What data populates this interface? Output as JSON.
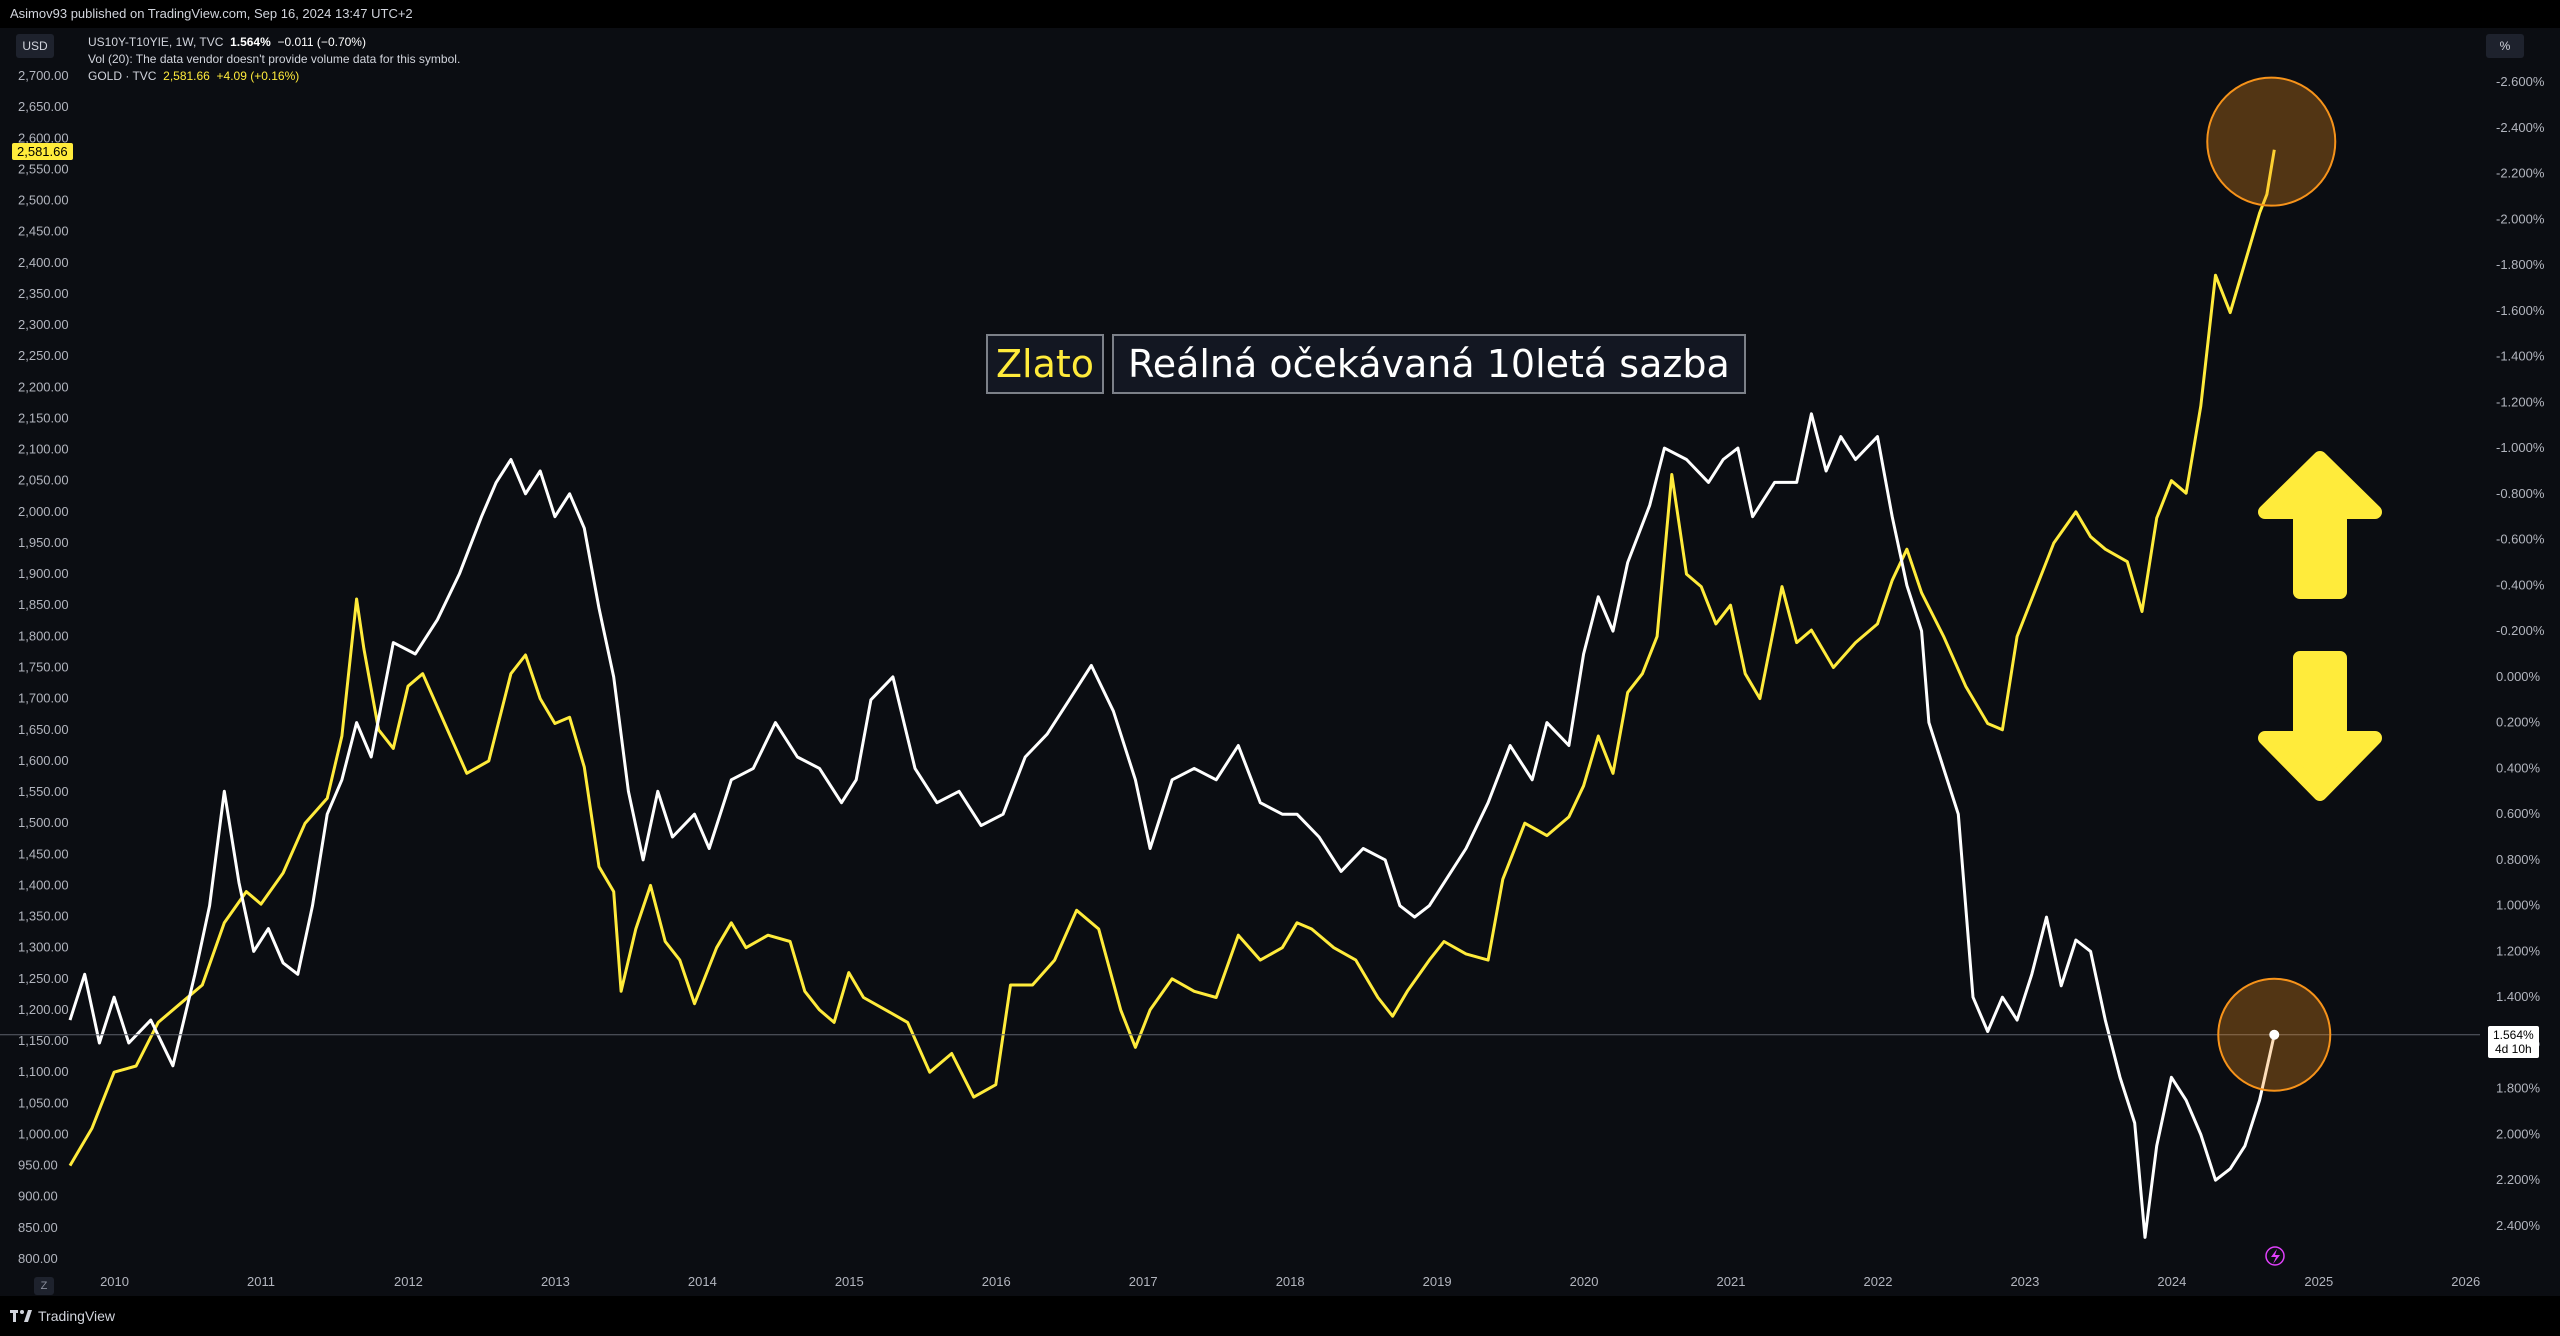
{
  "header": {
    "publisher": "Asimov93 published on TradingView.com, Sep 16, 2024 13:47 UTC+2"
  },
  "legend": {
    "series1_name": "US10Y-T10YIE, 1W, TVC",
    "series1_value": "1.564%",
    "series1_change": "−0.011 (−0.70%)",
    "volume_note": "Vol (20): The data vendor doesn't provide volume data for this symbol.",
    "series2_name": "GOLD · TVC",
    "series2_value": "2,581.66",
    "series2_change": "+4.09 (+0.16%)"
  },
  "badges": {
    "left_currency": "USD",
    "right_unit": "%",
    "gold_last": "2,581.66",
    "yield_last": "1.564%",
    "yield_countdown": "4d 10h",
    "scale_button": "Z"
  },
  "annotations": {
    "gold_title": "Zlato",
    "yield_title": "Reálná očekávaná 10letá sazba"
  },
  "footer": {
    "brand": "TradingView"
  },
  "colors": {
    "gold": "#ffeb3b",
    "yield": "#ffffff",
    "background": "#0b0d12",
    "highlight_circle": "#f7931a",
    "arrow": "#ffeb3b"
  },
  "chart_data": {
    "type": "line",
    "grid": false,
    "x_axis": {
      "labels": [
        "2010",
        "2011",
        "2012",
        "2013",
        "2014",
        "2015",
        "2016",
        "2017",
        "2018",
        "2019",
        "2020",
        "2021",
        "2022",
        "2023",
        "2024",
        "2025",
        "2026"
      ],
      "range": [
        2009.7,
        2026.1
      ]
    },
    "y_left": {
      "unit": "USD",
      "range": [
        800,
        2700
      ],
      "ticks": [
        "2,700.00",
        "2,650.00",
        "2,600.00",
        "2,550.00",
        "2,500.00",
        "2,450.00",
        "2,400.00",
        "2,350.00",
        "2,300.00",
        "2,250.00",
        "2,200.00",
        "2,150.00",
        "2,100.00",
        "2,050.00",
        "2,000.00",
        "1,950.00",
        "1,900.00",
        "1,850.00",
        "1,800.00",
        "1,750.00",
        "1,700.00",
        "1,650.00",
        "1,600.00",
        "1,550.00",
        "1,500.00",
        "1,450.00",
        "1,400.00",
        "1,350.00",
        "1,300.00",
        "1,250.00",
        "1,200.00",
        "1,150.00",
        "1,100.00",
        "1,050.00",
        "1,000.00",
        "950.00",
        "900.00",
        "850.00",
        "800.00"
      ]
    },
    "y_right": {
      "unit": "%",
      "inverted": true,
      "range": [
        -2.6,
        2.4
      ],
      "ticks": [
        "-2.600%",
        "-2.400%",
        "-2.200%",
        "-2.000%",
        "-1.800%",
        "-1.600%",
        "-1.400%",
        "-1.200%",
        "-1.000%",
        "-0.800%",
        "-0.600%",
        "-0.400%",
        "-0.200%",
        "0.000%",
        "0.200%",
        "0.400%",
        "0.600%",
        "0.800%",
        "1.000%",
        "1.200%",
        "1.400%",
        "1.600%",
        "1.800%",
        "2.000%",
        "2.200%",
        "2.400%"
      ]
    },
    "series": [
      {
        "name": "GOLD · TVC",
        "axis": "left",
        "color": "#ffeb3b",
        "points": [
          [
            2009.7,
            950
          ],
          [
            2009.85,
            1010
          ],
          [
            2010.0,
            1100
          ],
          [
            2010.15,
            1110
          ],
          [
            2010.3,
            1180
          ],
          [
            2010.45,
            1210
          ],
          [
            2010.6,
            1240
          ],
          [
            2010.75,
            1340
          ],
          [
            2010.9,
            1390
          ],
          [
            2011.0,
            1370
          ],
          [
            2011.15,
            1420
          ],
          [
            2011.3,
            1500
          ],
          [
            2011.45,
            1540
          ],
          [
            2011.55,
            1640
          ],
          [
            2011.65,
            1860
          ],
          [
            2011.7,
            1780
          ],
          [
            2011.8,
            1650
          ],
          [
            2011.9,
            1620
          ],
          [
            2012.0,
            1720
          ],
          [
            2012.1,
            1740
          ],
          [
            2012.25,
            1660
          ],
          [
            2012.4,
            1580
          ],
          [
            2012.55,
            1600
          ],
          [
            2012.7,
            1740
          ],
          [
            2012.8,
            1770
          ],
          [
            2012.9,
            1700
          ],
          [
            2013.0,
            1660
          ],
          [
            2013.1,
            1670
          ],
          [
            2013.2,
            1590
          ],
          [
            2013.3,
            1430
          ],
          [
            2013.4,
            1390
          ],
          [
            2013.45,
            1230
          ],
          [
            2013.55,
            1330
          ],
          [
            2013.65,
            1400
          ],
          [
            2013.75,
            1310
          ],
          [
            2013.85,
            1280
          ],
          [
            2013.95,
            1210
          ],
          [
            2014.0,
            1240
          ],
          [
            2014.1,
            1300
          ],
          [
            2014.2,
            1340
          ],
          [
            2014.3,
            1300
          ],
          [
            2014.45,
            1320
          ],
          [
            2014.6,
            1310
          ],
          [
            2014.7,
            1230
          ],
          [
            2014.8,
            1200
          ],
          [
            2014.9,
            1180
          ],
          [
            2015.0,
            1260
          ],
          [
            2015.1,
            1220
          ],
          [
            2015.25,
            1200
          ],
          [
            2015.4,
            1180
          ],
          [
            2015.55,
            1100
          ],
          [
            2015.7,
            1130
          ],
          [
            2015.85,
            1060
          ],
          [
            2016.0,
            1080
          ],
          [
            2016.1,
            1240
          ],
          [
            2016.25,
            1240
          ],
          [
            2016.4,
            1280
          ],
          [
            2016.55,
            1360
          ],
          [
            2016.7,
            1330
          ],
          [
            2016.85,
            1200
          ],
          [
            2016.95,
            1140
          ],
          [
            2017.05,
            1200
          ],
          [
            2017.2,
            1250
          ],
          [
            2017.35,
            1230
          ],
          [
            2017.5,
            1220
          ],
          [
            2017.65,
            1320
          ],
          [
            2017.8,
            1280
          ],
          [
            2017.95,
            1300
          ],
          [
            2018.05,
            1340
          ],
          [
            2018.15,
            1330
          ],
          [
            2018.3,
            1300
          ],
          [
            2018.45,
            1280
          ],
          [
            2018.6,
            1220
          ],
          [
            2018.7,
            1190
          ],
          [
            2018.8,
            1230
          ],
          [
            2018.95,
            1280
          ],
          [
            2019.05,
            1310
          ],
          [
            2019.2,
            1290
          ],
          [
            2019.35,
            1280
          ],
          [
            2019.45,
            1410
          ],
          [
            2019.6,
            1500
          ],
          [
            2019.75,
            1480
          ],
          [
            2019.9,
            1510
          ],
          [
            2020.0,
            1560
          ],
          [
            2020.1,
            1640
          ],
          [
            2020.2,
            1580
          ],
          [
            2020.3,
            1710
          ],
          [
            2020.4,
            1740
          ],
          [
            2020.5,
            1800
          ],
          [
            2020.6,
            2060
          ],
          [
            2020.7,
            1900
          ],
          [
            2020.8,
            1880
          ],
          [
            2020.9,
            1820
          ],
          [
            2021.0,
            1850
          ],
          [
            2021.1,
            1740
          ],
          [
            2021.2,
            1700
          ],
          [
            2021.35,
            1880
          ],
          [
            2021.45,
            1790
          ],
          [
            2021.55,
            1810
          ],
          [
            2021.7,
            1750
          ],
          [
            2021.85,
            1790
          ],
          [
            2022.0,
            1820
          ],
          [
            2022.1,
            1890
          ],
          [
            2022.2,
            1940
          ],
          [
            2022.3,
            1870
          ],
          [
            2022.45,
            1800
          ],
          [
            2022.6,
            1720
          ],
          [
            2022.75,
            1660
          ],
          [
            2022.85,
            1650
          ],
          [
            2022.95,
            1800
          ],
          [
            2023.05,
            1860
          ],
          [
            2023.2,
            1950
          ],
          [
            2023.35,
            2000
          ],
          [
            2023.45,
            1960
          ],
          [
            2023.55,
            1940
          ],
          [
            2023.7,
            1920
          ],
          [
            2023.8,
            1840
          ],
          [
            2023.9,
            1990
          ],
          [
            2024.0,
            2050
          ],
          [
            2024.1,
            2030
          ],
          [
            2024.2,
            2170
          ],
          [
            2024.3,
            2380
          ],
          [
            2024.4,
            2320
          ],
          [
            2024.5,
            2400
          ],
          [
            2024.6,
            2480
          ],
          [
            2024.65,
            2510
          ],
          [
            2024.7,
            2581.66
          ]
        ]
      },
      {
        "name": "US10Y-T10YIE, 1W, TVC",
        "axis": "right",
        "color": "#ffffff",
        "points": [
          [
            2009.7,
            1.5
          ],
          [
            2009.8,
            1.3
          ],
          [
            2009.9,
            1.6
          ],
          [
            2010.0,
            1.4
          ],
          [
            2010.1,
            1.6
          ],
          [
            2010.25,
            1.5
          ],
          [
            2010.4,
            1.7
          ],
          [
            2010.55,
            1.3
          ],
          [
            2010.65,
            1.0
          ],
          [
            2010.75,
            0.5
          ],
          [
            2010.85,
            0.9
          ],
          [
            2010.95,
            1.2
          ],
          [
            2011.05,
            1.1
          ],
          [
            2011.15,
            1.25
          ],
          [
            2011.25,
            1.3
          ],
          [
            2011.35,
            1.0
          ],
          [
            2011.45,
            0.6
          ],
          [
            2011.55,
            0.45
          ],
          [
            2011.65,
            0.2
          ],
          [
            2011.75,
            0.35
          ],
          [
            2011.9,
            -0.15
          ],
          [
            2012.05,
            -0.1
          ],
          [
            2012.2,
            -0.25
          ],
          [
            2012.35,
            -0.45
          ],
          [
            2012.5,
            -0.7
          ],
          [
            2012.6,
            -0.85
          ],
          [
            2012.7,
            -0.95
          ],
          [
            2012.8,
            -0.8
          ],
          [
            2012.9,
            -0.9
          ],
          [
            2013.0,
            -0.7
          ],
          [
            2013.1,
            -0.8
          ],
          [
            2013.2,
            -0.65
          ],
          [
            2013.3,
            -0.3
          ],
          [
            2013.4,
            0.0
          ],
          [
            2013.5,
            0.5
          ],
          [
            2013.6,
            0.8
          ],
          [
            2013.7,
            0.5
          ],
          [
            2013.8,
            0.7
          ],
          [
            2013.95,
            0.6
          ],
          [
            2014.05,
            0.75
          ],
          [
            2014.2,
            0.45
          ],
          [
            2014.35,
            0.4
          ],
          [
            2014.5,
            0.2
          ],
          [
            2014.65,
            0.35
          ],
          [
            2014.8,
            0.4
          ],
          [
            2014.95,
            0.55
          ],
          [
            2015.05,
            0.45
          ],
          [
            2015.15,
            0.1
          ],
          [
            2015.3,
            0.0
          ],
          [
            2015.45,
            0.4
          ],
          [
            2015.6,
            0.55
          ],
          [
            2015.75,
            0.5
          ],
          [
            2015.9,
            0.65
          ],
          [
            2016.05,
            0.6
          ],
          [
            2016.2,
            0.35
          ],
          [
            2016.35,
            0.25
          ],
          [
            2016.5,
            0.1
          ],
          [
            2016.65,
            -0.05
          ],
          [
            2016.8,
            0.15
          ],
          [
            2016.95,
            0.45
          ],
          [
            2017.05,
            0.75
          ],
          [
            2017.2,
            0.45
          ],
          [
            2017.35,
            0.4
          ],
          [
            2017.5,
            0.45
          ],
          [
            2017.65,
            0.3
          ],
          [
            2017.8,
            0.55
          ],
          [
            2017.95,
            0.6
          ],
          [
            2018.05,
            0.6
          ],
          [
            2018.2,
            0.7
          ],
          [
            2018.35,
            0.85
          ],
          [
            2018.5,
            0.75
          ],
          [
            2018.65,
            0.8
          ],
          [
            2018.75,
            1.0
          ],
          [
            2018.85,
            1.05
          ],
          [
            2018.95,
            1.0
          ],
          [
            2019.05,
            0.9
          ],
          [
            2019.2,
            0.75
          ],
          [
            2019.35,
            0.55
          ],
          [
            2019.5,
            0.3
          ],
          [
            2019.65,
            0.45
          ],
          [
            2019.75,
            0.2
          ],
          [
            2019.9,
            0.3
          ],
          [
            2020.0,
            -0.1
          ],
          [
            2020.1,
            -0.35
          ],
          [
            2020.2,
            -0.2
          ],
          [
            2020.3,
            -0.5
          ],
          [
            2020.45,
            -0.75
          ],
          [
            2020.55,
            -1.0
          ],
          [
            2020.7,
            -0.95
          ],
          [
            2020.85,
            -0.85
          ],
          [
            2020.95,
            -0.95
          ],
          [
            2021.05,
            -1.0
          ],
          [
            2021.15,
            -0.7
          ],
          [
            2021.3,
            -0.85
          ],
          [
            2021.45,
            -0.85
          ],
          [
            2021.55,
            -1.15
          ],
          [
            2021.65,
            -0.9
          ],
          [
            2021.75,
            -1.05
          ],
          [
            2021.85,
            -0.95
          ],
          [
            2022.0,
            -1.05
          ],
          [
            2022.1,
            -0.7
          ],
          [
            2022.2,
            -0.4
          ],
          [
            2022.3,
            -0.2
          ],
          [
            2022.35,
            0.2
          ],
          [
            2022.45,
            0.4
          ],
          [
            2022.55,
            0.6
          ],
          [
            2022.65,
            1.4
          ],
          [
            2022.75,
            1.55
          ],
          [
            2022.85,
            1.4
          ],
          [
            2022.95,
            1.5
          ],
          [
            2023.05,
            1.3
          ],
          [
            2023.15,
            1.05
          ],
          [
            2023.25,
            1.35
          ],
          [
            2023.35,
            1.15
          ],
          [
            2023.45,
            1.2
          ],
          [
            2023.55,
            1.5
          ],
          [
            2023.65,
            1.75
          ],
          [
            2023.75,
            1.95
          ],
          [
            2023.82,
            2.45
          ],
          [
            2023.9,
            2.05
          ],
          [
            2024.0,
            1.75
          ],
          [
            2024.1,
            1.85
          ],
          [
            2024.2,
            2.0
          ],
          [
            2024.3,
            2.2
          ],
          [
            2024.4,
            2.15
          ],
          [
            2024.5,
            2.05
          ],
          [
            2024.6,
            1.85
          ],
          [
            2024.67,
            1.65
          ],
          [
            2024.7,
            1.564
          ]
        ]
      }
    ]
  }
}
